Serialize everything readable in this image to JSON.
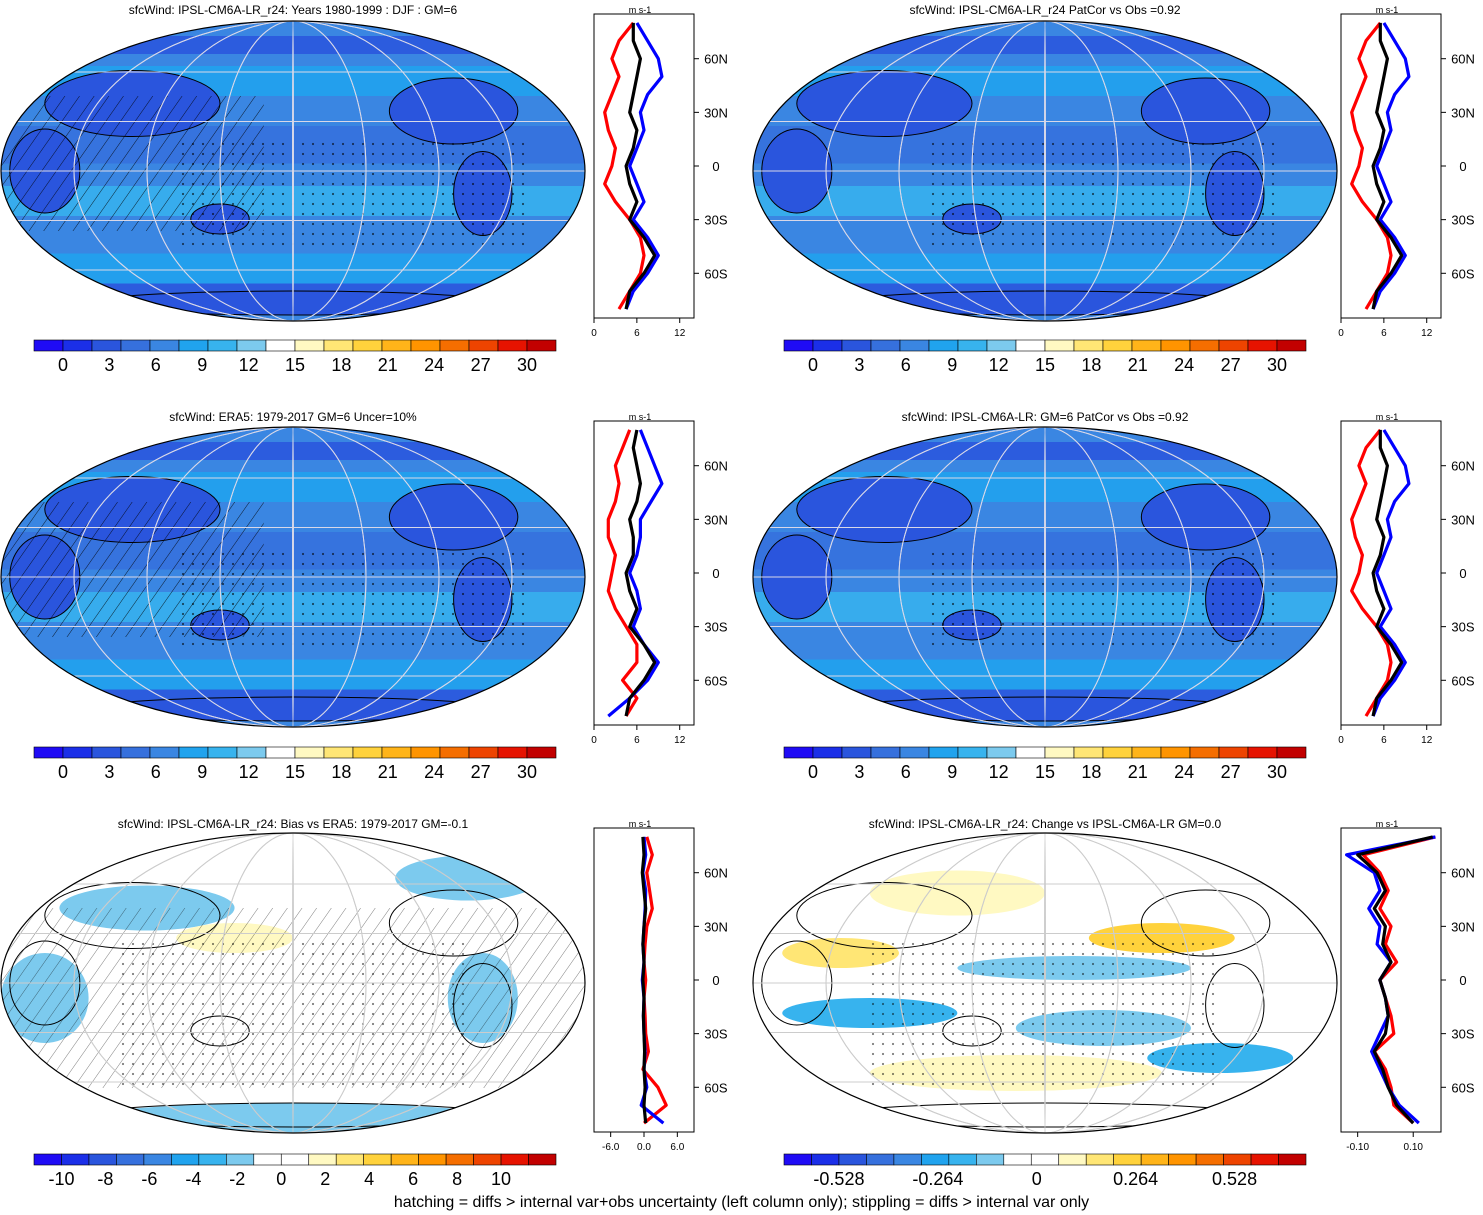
{
  "figure": {
    "caption": "hatching = diffs > internal var+obs uncertainty (left column only); stippling = diffs > internal var only"
  },
  "chart_data": [
    {
      "type": "heatmap",
      "panel": "row1-left",
      "title": "sfcWind: IPSL-CM6A-LR_r24: Years 1980-1999 : DJF : GM=6",
      "variable": "sfcWind",
      "projection": "Robinson, centered on 180",
      "field": "mean",
      "colorbar": {
        "ticks": [
          "0",
          "3",
          "6",
          "9",
          "12",
          "15",
          "18",
          "21",
          "24",
          "27",
          "30"
        ],
        "colors": [
          "#1f0bf5",
          "#1b2fe8",
          "#2a55dd",
          "#3670dd",
          "#3a86e2",
          "#20a3ee",
          "#37b3ee",
          "#7ccaee",
          "#ffffff",
          "#fff9c2",
          "#ffe675",
          "#ffd23c",
          "#ffb419",
          "#ff9400",
          "#f56e00",
          "#ee4400",
          "#e61300",
          "#c20000"
        ]
      },
      "zonal_profile": {
        "unit": "m s-1",
        "x_ticks": [
          "0",
          "6",
          "12"
        ],
        "xlim": [
          0,
          14
        ],
        "y_ticks": [
          "60N",
          "30N",
          "0",
          "30S",
          "60S"
        ],
        "lat": [
          80,
          70,
          60,
          50,
          40,
          30,
          20,
          10,
          0,
          -10,
          -20,
          -30,
          -40,
          -50,
          -60,
          -70,
          -80
        ],
        "series": [
          {
            "color": "#ff0000",
            "values": [
              5.5,
              3.5,
              2.5,
              3.5,
              2.5,
              1.5,
              2.0,
              3.0,
              2.5,
              1.5,
              3.0,
              5.0,
              6.5,
              7.0,
              6.5,
              5.0,
              3.5
            ]
          },
          {
            "color": "#0000ff",
            "values": [
              6.0,
              7.5,
              9.0,
              9.5,
              7.5,
              6.5,
              7.0,
              6.0,
              5.0,
              6.0,
              7.0,
              5.5,
              7.5,
              9.0,
              7.5,
              5.5,
              4.5
            ]
          },
          {
            "color": "#000000",
            "values": [
              5.5,
              5.5,
              6.5,
              6.0,
              5.5,
              5.0,
              6.0,
              5.5,
              4.5,
              5.0,
              6.0,
              5.0,
              7.0,
              8.5,
              7.0,
              5.0,
              4.5
            ]
          }
        ]
      }
    },
    {
      "type": "heatmap",
      "panel": "row1-right",
      "title": "sfcWind: IPSL-CM6A-LR_r24 PatCor vs Obs =0.92",
      "variable": "sfcWind",
      "projection": "Robinson, centered on 180",
      "field": "mean",
      "colorbar": {
        "ticks": [
          "0",
          "3",
          "6",
          "9",
          "12",
          "15",
          "18",
          "21",
          "24",
          "27",
          "30"
        ],
        "colors": [
          "#1f0bf5",
          "#1b2fe8",
          "#2a55dd",
          "#3670dd",
          "#3a86e2",
          "#20a3ee",
          "#37b3ee",
          "#7ccaee",
          "#ffffff",
          "#fff9c2",
          "#ffe675",
          "#ffd23c",
          "#ffb419",
          "#ff9400",
          "#f56e00",
          "#ee4400",
          "#e61300",
          "#c20000"
        ]
      },
      "zonal_profile": {
        "unit": "m s-1",
        "x_ticks": [
          "0",
          "6",
          "12"
        ],
        "xlim": [
          0,
          14
        ],
        "y_ticks": [
          "60N",
          "30N",
          "0",
          "30S",
          "60S"
        ],
        "lat": [
          80,
          70,
          60,
          50,
          40,
          30,
          20,
          10,
          0,
          -10,
          -20,
          -30,
          -40,
          -50,
          -60,
          -70,
          -80
        ],
        "series": [
          {
            "color": "#ff0000",
            "values": [
              5.5,
              3.5,
              2.5,
              3.5,
              2.5,
              1.5,
              2.0,
              3.0,
              2.5,
              1.5,
              3.0,
              5.0,
              6.5,
              7.0,
              6.5,
              5.0,
              3.5
            ]
          },
          {
            "color": "#0000ff",
            "values": [
              6.0,
              7.5,
              9.0,
              9.5,
              7.5,
              6.5,
              7.0,
              6.0,
              5.0,
              6.0,
              7.0,
              5.5,
              7.5,
              9.0,
              7.5,
              5.5,
              4.5
            ]
          },
          {
            "color": "#000000",
            "values": [
              5.5,
              5.5,
              6.5,
              6.0,
              5.5,
              5.0,
              6.0,
              5.5,
              4.5,
              5.0,
              6.0,
              5.0,
              7.0,
              8.5,
              7.0,
              5.0,
              4.5
            ]
          }
        ]
      }
    },
    {
      "type": "heatmap",
      "panel": "row2-left",
      "title": "sfcWind: ERA5: 1979-2017 GM=6 Uncer=10%",
      "variable": "sfcWind",
      "projection": "Robinson, centered on 180",
      "field": "mean",
      "colorbar": {
        "ticks": [
          "0",
          "3",
          "6",
          "9",
          "12",
          "15",
          "18",
          "21",
          "24",
          "27",
          "30"
        ],
        "colors": [
          "#1f0bf5",
          "#1b2fe8",
          "#2a55dd",
          "#3670dd",
          "#3a86e2",
          "#20a3ee",
          "#37b3ee",
          "#7ccaee",
          "#ffffff",
          "#fff9c2",
          "#ffe675",
          "#ffd23c",
          "#ffb419",
          "#ff9400",
          "#f56e00",
          "#ee4400",
          "#e61300",
          "#c20000"
        ]
      },
      "zonal_profile": {
        "unit": "m s-1",
        "x_ticks": [
          "0",
          "6",
          "12"
        ],
        "xlim": [
          0,
          14
        ],
        "y_ticks": [
          "60N",
          "30N",
          "0",
          "30S",
          "60S"
        ],
        "lat": [
          80,
          70,
          60,
          50,
          40,
          30,
          20,
          10,
          0,
          -10,
          -20,
          -30,
          -40,
          -50,
          -60,
          -70,
          -80
        ],
        "series": [
          {
            "color": "#ff0000",
            "values": [
              5.0,
              4.0,
              3.0,
              3.5,
              3.0,
              2.0,
              2.0,
              3.0,
              2.5,
              2.0,
              3.0,
              4.5,
              6.0,
              6.0,
              4.0,
              6.0,
              4.5
            ]
          },
          {
            "color": "#0000ff",
            "values": [
              6.5,
              7.5,
              8.5,
              9.5,
              8.0,
              6.5,
              6.5,
              6.0,
              5.0,
              6.0,
              6.5,
              5.5,
              7.0,
              9.0,
              7.5,
              5.0,
              2.0
            ]
          },
          {
            "color": "#000000",
            "values": [
              6.0,
              5.5,
              6.0,
              6.5,
              6.0,
              5.0,
              5.5,
              5.5,
              4.5,
              5.0,
              6.0,
              5.0,
              7.0,
              8.5,
              7.0,
              5.0,
              4.5
            ]
          }
        ]
      }
    },
    {
      "type": "heatmap",
      "panel": "row2-right",
      "title": "sfcWind: IPSL-CM6A-LR: GM=6 PatCor vs Obs =0.92",
      "variable": "sfcWind",
      "projection": "Robinson, centered on 180",
      "field": "mean",
      "colorbar": {
        "ticks": [
          "0",
          "3",
          "6",
          "9",
          "12",
          "15",
          "18",
          "21",
          "24",
          "27",
          "30"
        ],
        "colors": [
          "#1f0bf5",
          "#1b2fe8",
          "#2a55dd",
          "#3670dd",
          "#3a86e2",
          "#20a3ee",
          "#37b3ee",
          "#7ccaee",
          "#ffffff",
          "#fff9c2",
          "#ffe675",
          "#ffd23c",
          "#ffb419",
          "#ff9400",
          "#f56e00",
          "#ee4400",
          "#e61300",
          "#c20000"
        ]
      },
      "zonal_profile": {
        "unit": "m s-1",
        "x_ticks": [
          "0",
          "6",
          "12"
        ],
        "xlim": [
          0,
          14
        ],
        "y_ticks": [
          "60N",
          "30N",
          "0",
          "30S",
          "60S"
        ],
        "lat": [
          80,
          70,
          60,
          50,
          40,
          30,
          20,
          10,
          0,
          -10,
          -20,
          -30,
          -40,
          -50,
          -60,
          -70,
          -80
        ],
        "series": [
          {
            "color": "#ff0000",
            "values": [
              5.5,
              3.5,
              2.5,
              3.5,
              2.5,
              1.5,
              2.0,
              3.0,
              2.5,
              1.5,
              3.0,
              5.0,
              6.5,
              7.0,
              6.5,
              5.0,
              3.5
            ]
          },
          {
            "color": "#0000ff",
            "values": [
              6.0,
              7.5,
              9.0,
              9.5,
              7.5,
              6.5,
              7.0,
              6.0,
              5.0,
              6.0,
              7.0,
              5.5,
              7.5,
              9.0,
              7.5,
              5.5,
              4.5
            ]
          },
          {
            "color": "#000000",
            "values": [
              5.5,
              5.5,
              6.5,
              6.0,
              5.5,
              5.0,
              6.0,
              5.5,
              4.5,
              5.0,
              6.0,
              5.0,
              7.0,
              8.5,
              7.0,
              5.0,
              4.5
            ]
          }
        ]
      }
    },
    {
      "type": "heatmap",
      "panel": "row3-left",
      "title": "sfcWind: IPSL-CM6A-LR_r24: Bias vs ERA5: 1979-2017 GM=-0.1",
      "variable": "sfcWind",
      "projection": "Robinson, centered on 180",
      "field": "bias",
      "colorbar": {
        "ticks": [
          "-10",
          "-8",
          "-6",
          "-4",
          "-2",
          "0",
          "2",
          "4",
          "6",
          "8",
          "10"
        ],
        "colors": [
          "#1f0bf5",
          "#1b2fe8",
          "#2a55dd",
          "#3670dd",
          "#3a86e2",
          "#20a3ee",
          "#37b3ee",
          "#7ccaee",
          "#ffffff",
          "#ffffff",
          "#fff9c2",
          "#ffe675",
          "#ffd23c",
          "#ffb419",
          "#ff9400",
          "#f56e00",
          "#ee4400",
          "#e61300",
          "#c20000"
        ]
      },
      "zonal_profile": {
        "unit": "m s-1",
        "x_ticks": [
          "-6.0",
          "0.0",
          "6.0"
        ],
        "xlim": [
          -9,
          9
        ],
        "y_ticks": [
          "60N",
          "30N",
          "0",
          "30S",
          "60S"
        ],
        "lat": [
          80,
          70,
          60,
          50,
          40,
          30,
          20,
          10,
          0,
          -10,
          -20,
          -30,
          -40,
          -50,
          -60,
          -70,
          -80
        ],
        "series": [
          {
            "color": "#ff0000",
            "values": [
              0.5,
              1.5,
              0.5,
              1.0,
              1.5,
              0.5,
              0.2,
              0.0,
              0.3,
              0.0,
              0.2,
              0.3,
              0.8,
              -0.2,
              2.5,
              4.0,
              0.0
            ]
          },
          {
            "color": "#0000ff",
            "values": [
              0.0,
              0.3,
              -0.2,
              0.3,
              0.2,
              0.0,
              -0.2,
              0.0,
              -0.3,
              0.0,
              -0.1,
              0.0,
              0.2,
              0.0,
              0.5,
              -0.5,
              3.5
            ]
          },
          {
            "color": "#000000",
            "values": [
              -0.2,
              0.0,
              -0.3,
              0.0,
              0.3,
              0.0,
              -0.2,
              0.0,
              -0.2,
              0.0,
              -0.1,
              0.0,
              0.1,
              0.0,
              0.2,
              0.0,
              0.3
            ]
          }
        ]
      }
    },
    {
      "type": "heatmap",
      "panel": "row3-right",
      "title": "sfcWind: IPSL-CM6A-LR_r24: Change vs IPSL-CM6A-LR GM=0.0",
      "variable": "sfcWind",
      "projection": "Robinson, centered on 180",
      "field": "difference",
      "colorbar": {
        "ticks": [
          "-0.528",
          "-0.264",
          "0",
          "0.264",
          "0.528"
        ],
        "colors": [
          "#1f0bf5",
          "#1b2fe8",
          "#2a55dd",
          "#3670dd",
          "#3a86e2",
          "#20a3ee",
          "#37b3ee",
          "#7ccaee",
          "#ffffff",
          "#ffffff",
          "#fff9c2",
          "#ffe675",
          "#ffd23c",
          "#ffb419",
          "#ff9400",
          "#f56e00",
          "#ee4400",
          "#e61300",
          "#c20000"
        ]
      },
      "zonal_profile": {
        "unit": "m s-1",
        "x_ticks": [
          "-0.10",
          "0.10"
        ],
        "xlim": [
          -0.16,
          0.2
        ],
        "y_ticks": [
          "60N",
          "30N",
          "0",
          "30S",
          "60S"
        ],
        "lat": [
          80,
          70,
          60,
          50,
          40,
          30,
          20,
          10,
          0,
          -10,
          -20,
          -30,
          -40,
          -50,
          -60,
          -70,
          -80
        ],
        "series": [
          {
            "color": "#ff0000",
            "values": [
              0.18,
              -0.08,
              -0.02,
              0.01,
              -0.02,
              0.02,
              0.0,
              0.04,
              -0.02,
              0.0,
              0.02,
              0.03,
              -0.04,
              0.0,
              0.02,
              0.03,
              0.1
            ]
          },
          {
            "color": "#0000ff",
            "values": [
              0.18,
              -0.14,
              -0.04,
              -0.02,
              -0.06,
              -0.02,
              -0.03,
              0.02,
              -0.02,
              0.0,
              0.01,
              -0.02,
              -0.05,
              -0.02,
              0.01,
              0.05,
              0.12
            ]
          },
          {
            "color": "#000000",
            "values": [
              0.17,
              -0.1,
              -0.03,
              0.0,
              -0.04,
              0.0,
              -0.01,
              0.02,
              -0.02,
              0.0,
              0.01,
              0.0,
              -0.04,
              -0.01,
              0.01,
              0.04,
              0.1
            ]
          }
        ]
      }
    }
  ]
}
